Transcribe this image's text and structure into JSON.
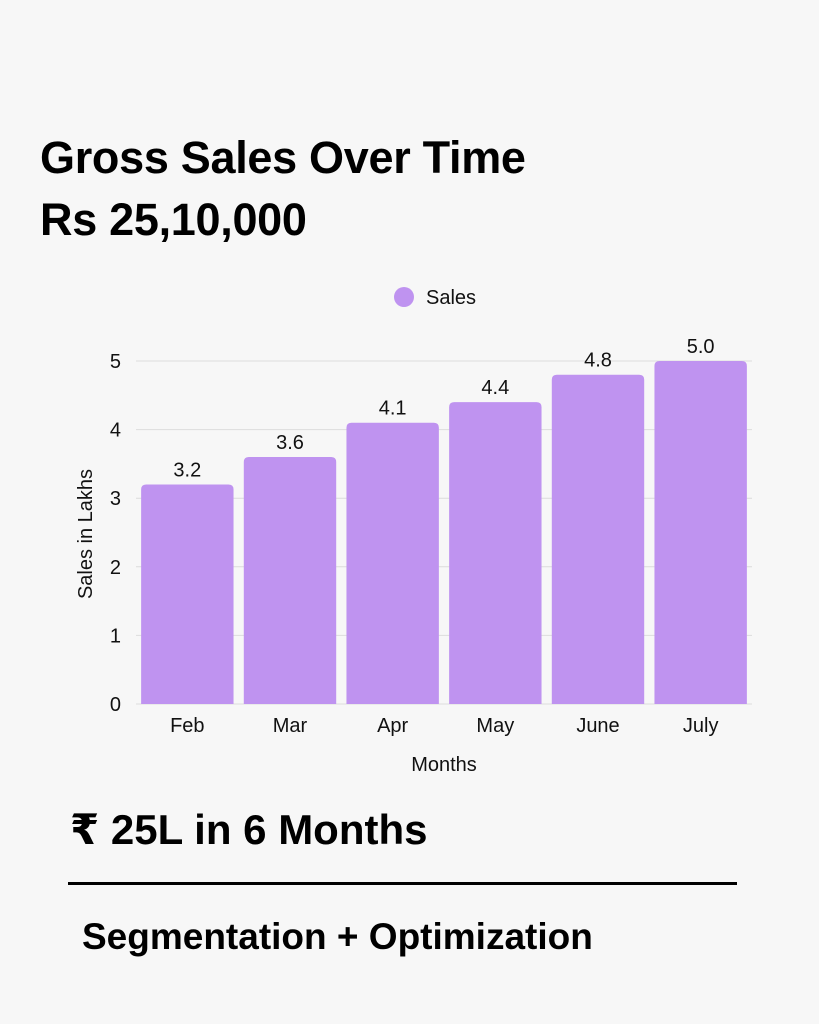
{
  "header": {
    "title": "Gross Sales Over Time",
    "subtitle": "Rs 25,10,000"
  },
  "colors": {
    "bar": "#bf93f0",
    "grid": "#dcdcdc",
    "background": "#f7f7f7"
  },
  "chart_data": {
    "type": "bar",
    "categories": [
      "Feb",
      "Mar",
      "Apr",
      "May",
      "June",
      "July"
    ],
    "series": [
      {
        "name": "Sales",
        "values": [
          3.2,
          3.6,
          4.1,
          4.4,
          4.8,
          5.0
        ]
      }
    ],
    "data_labels": [
      "3.2",
      "3.6",
      "4.1",
      "4.4",
      "4.8",
      "5.0"
    ],
    "xlabel": "Months",
    "ylabel": "Sales in Lakhs",
    "ylim": [
      0,
      5
    ],
    "yticks": [
      "0",
      "1",
      "2",
      "3",
      "4",
      "5"
    ],
    "grid": true,
    "legend": "top-center"
  },
  "footer": {
    "stat": "₹ 25L in 6 Months",
    "tagline": "Segmentation + Optimization"
  }
}
